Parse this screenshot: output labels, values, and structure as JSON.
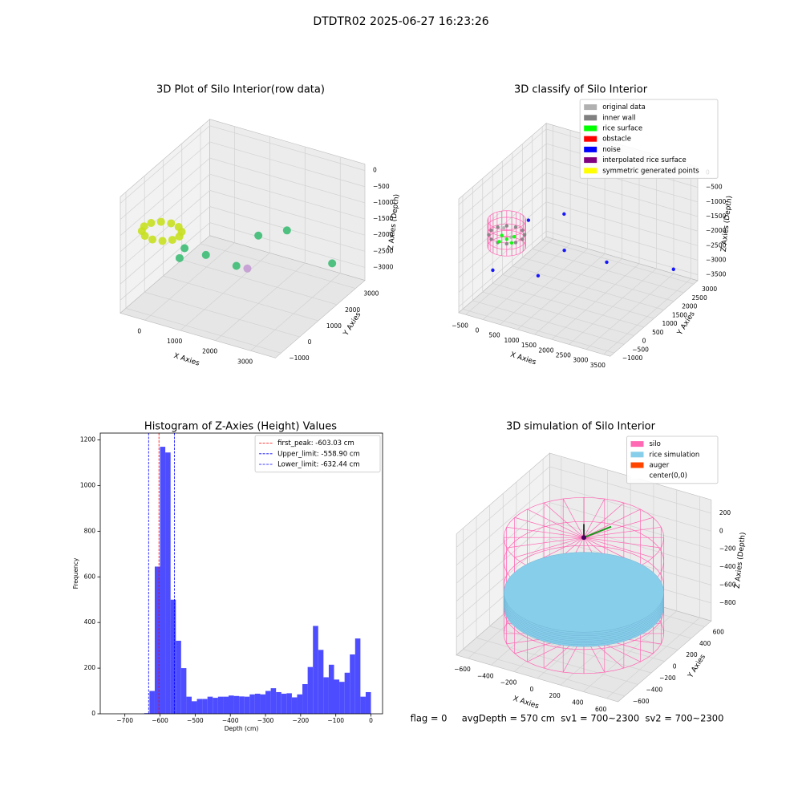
{
  "title": "DTDTR02 2025-06-27 16:23:26",
  "footer": "flag = 0     avgDepth = 570 cm  sv1 = 700~2300  sv2 = 700~2300",
  "chart_data": [
    {
      "type": "scatter3d",
      "title": "3D Plot of Silo Interior(row data)",
      "xlabel": "X Axies",
      "ylabel": "Y Axies",
      "zlabel": "Z Axies (Depth)",
      "xlim": [
        -700,
        3700
      ],
      "ylim": [
        -1300,
        3500
      ],
      "zlim": [
        -3400,
        200
      ],
      "xticks": [
        0,
        1000,
        2000,
        3000
      ],
      "yticks": [
        {
          "value": -1000,
          "label": "−1000"
        },
        0,
        1000,
        2000,
        3000
      ],
      "zticks": [
        0,
        {
          "value": -500,
          "label": "−500"
        },
        {
          "value": -1000,
          "label": "−1000"
        },
        {
          "value": -1500,
          "label": "−1500"
        },
        {
          "value": -2000,
          "label": "−2000"
        },
        {
          "value": -2500,
          "label": "−2500"
        },
        {
          "value": -3000,
          "label": "−3000"
        }
      ],
      "grid": true,
      "series": [
        {
          "color": "#c8e020",
          "points": [
            [
              500,
              -400,
              -1100
            ],
            [
              433,
              -150,
              -1100
            ],
            [
              250,
              33,
              -1100
            ],
            [
              0,
              100,
              -1100
            ],
            [
              -250,
              33,
              -1100
            ],
            [
              -433,
              -150,
              -1100
            ],
            [
              -500,
              -400,
              -1100
            ],
            [
              -433,
              -650,
              -1100
            ],
            [
              -250,
              -833,
              -1100
            ],
            [
              0,
              -900,
              -1100
            ],
            [
              250,
              -833,
              -1100
            ],
            [
              433,
              -650,
              -1100
            ]
          ]
        },
        {
          "color": "#3dbc74",
          "points": [
            [
              2000,
              1000,
              -1300
            ],
            [
              2600,
              1400,
              -1150
            ],
            [
              1200,
              -300,
              -1500
            ],
            [
              400,
              -200,
              -1900
            ],
            [
              3300,
              2500,
              -2500
            ],
            [
              1800,
              200,
              -1900
            ],
            [
              700,
              -500,
              -1350
            ]
          ]
        },
        {
          "color": "#c39bd3",
          "points": [
            [
              1900,
              600,
              -2150
            ]
          ]
        }
      ]
    },
    {
      "type": "scatter3d",
      "title": "3D classify of Silo Interior",
      "xlabel": "X Axies",
      "ylabel": "Y Axies",
      "zlabel": "Z Axies (Depth)",
      "xlim": [
        -700,
        3700
      ],
      "ylim": [
        -1200,
        3200
      ],
      "zlim": [
        -3700,
        200
      ],
      "xticks": [
        {
          "value": -500,
          "label": "−500"
        },
        0,
        500,
        1000,
        1500,
        2000,
        2500,
        3000,
        3500
      ],
      "yticks": [
        {
          "value": -1000,
          "label": "−1000"
        },
        {
          "value": -500,
          "label": "−500"
        },
        0,
        500,
        1000,
        1500,
        2000,
        2500,
        3000
      ],
      "zticks": [
        0,
        {
          "value": -500,
          "label": "−500"
        },
        {
          "value": -1000,
          "label": "−1000"
        },
        {
          "value": -1500,
          "label": "−1500"
        },
        {
          "value": -2000,
          "label": "−2000"
        },
        {
          "value": -2500,
          "label": "−2500"
        },
        {
          "value": -3000,
          "label": "−3000"
        },
        {
          "value": -3500,
          "label": "−3500"
        }
      ],
      "grid": true,
      "legend": "upper right",
      "wireframe": {
        "color": "#ff69b4",
        "radius": 480,
        "zlim": [
          -1900,
          -1000
        ]
      },
      "series": [
        {
          "name": "original data",
          "color": "#b0b0b0",
          "points": [
            [
              300,
              -300,
              -1300
            ],
            [
              -200,
              200,
              -1450
            ]
          ]
        },
        {
          "name": "inner wall",
          "color": "#808080",
          "points": [
            [
              450,
              0,
              -1500
            ],
            [
              390,
              225,
              -1500
            ],
            [
              225,
              390,
              -1500
            ],
            [
              0,
              450,
              -1500
            ],
            [
              -225,
              390,
              -1500
            ],
            [
              -390,
              225,
              -1500
            ],
            [
              -450,
              0,
              -1500
            ],
            [
              -390,
              -225,
              -1500
            ],
            [
              -225,
              -390,
              -1500
            ],
            [
              0,
              -450,
              -1500
            ],
            [
              225,
              -390,
              -1500
            ],
            [
              390,
              -225,
              -1500
            ]
          ]
        },
        {
          "name": "rice surface",
          "color": "#00ff00",
          "points": [
            [
              0,
              0,
              -1650
            ],
            [
              200,
              -100,
              -1650
            ],
            [
              -200,
              100,
              -1650
            ],
            [
              100,
              200,
              -1650
            ],
            [
              -100,
              -200,
              -1650
            ]
          ]
        },
        {
          "name": "obstacle",
          "color": "#ff0000",
          "points": []
        },
        {
          "name": "noise",
          "color": "#0000ff",
          "points": [
            [
              1500,
              300,
              -1700
            ],
            [
              2500,
              700,
              -2000
            ],
            [
              3400,
              2500,
              -3000
            ],
            [
              1200,
              -500,
              -2200
            ],
            [
              800,
              1500,
              -1400
            ],
            [
              0,
              -700,
              -2300
            ],
            [
              400,
              400,
              -1100
            ]
          ]
        },
        {
          "name": "interpolated rice surface",
          "color": "#800080",
          "points": []
        },
        {
          "name": "symmetric generated points",
          "color": "#ffff00",
          "points": []
        }
      ]
    },
    {
      "type": "histogram",
      "title": "Histogram of Z-Axies (Height) Values",
      "xlabel": "Depth (cm)",
      "ylabel": "Frequency",
      "color": "#4d4dff",
      "xlim": [
        -770,
        33
      ],
      "ylim": [
        0,
        1230
      ],
      "xticks": [
        {
          "value": -700,
          "label": "−700"
        },
        {
          "value": -600,
          "label": "−600"
        },
        {
          "value": -500,
          "label": "−500"
        },
        {
          "value": -400,
          "label": "−400"
        },
        {
          "value": -300,
          "label": "−300"
        },
        {
          "value": -200,
          "label": "−200"
        },
        {
          "value": -100,
          "label": "−100"
        },
        0
      ],
      "yticks": [
        0,
        200,
        400,
        600,
        800,
        1000,
        1200
      ],
      "bins": [
        -645,
        -630,
        -615,
        -600,
        -585,
        -570,
        -555,
        -540,
        -525,
        -510,
        -495,
        -480,
        -465,
        -450,
        -435,
        -420,
        -405,
        -390,
        -375,
        -360,
        -345,
        -330,
        -315,
        -300,
        -285,
        -270,
        -255,
        -240,
        -225,
        -210,
        -195,
        -180,
        -165,
        -150,
        -135,
        -120,
        -105,
        -90,
        -75,
        -60,
        -45,
        -30,
        -15,
        0
      ],
      "counts": [
        3,
        100,
        645,
        1170,
        1145,
        500,
        320,
        200,
        75,
        55,
        65,
        65,
        75,
        70,
        75,
        75,
        80,
        78,
        76,
        75,
        85,
        88,
        85,
        100,
        112,
        95,
        88,
        90,
        72,
        85,
        130,
        205,
        385,
        280,
        160,
        215,
        150,
        140,
        180,
        260,
        330,
        75,
        95
      ],
      "legend": "upper right",
      "vlines": [
        {
          "value": -603.03,
          "label": "first_peak: -603.03 cm",
          "color": "#ff0000"
        },
        {
          "value": -558.9,
          "label": "Upper_limit: -558.90 cm",
          "color": "#0000ff"
        },
        {
          "value": -632.44,
          "label": "Lower_limit: -632.44 cm",
          "color": "#0000ff"
        }
      ]
    },
    {
      "type": "silo3d",
      "title": "3D simulation of Silo Interior",
      "xlabel": "X Axies",
      "ylabel": "Y Axies",
      "zlabel": "Z Axies (Depth)",
      "xlim": [
        -700,
        700
      ],
      "ylim": [
        -700,
        700
      ],
      "zlim": [
        -1000,
        350
      ],
      "xticks": [
        {
          "value": -600,
          "label": "−600"
        },
        {
          "value": -400,
          "label": "−400"
        },
        {
          "value": -200,
          "label": "−200"
        },
        0,
        200,
        400,
        600
      ],
      "yticks": [
        {
          "value": -600,
          "label": "−600"
        },
        {
          "value": -400,
          "label": "−400"
        },
        {
          "value": -200,
          "label": "−200"
        },
        0,
        200,
        400,
        600
      ],
      "zticks": [
        {
          "value": -800,
          "label": "−800"
        },
        {
          "value": -600,
          "label": "−600"
        },
        {
          "value": -400,
          "label": "−400"
        },
        {
          "value": -200,
          "label": "−200"
        },
        0,
        200
      ],
      "grid": true,
      "legend": "upper right",
      "silo": {
        "name": "silo",
        "color": "#ff69b4",
        "radius": 600,
        "zlim": [
          -950,
          120
        ]
      },
      "rice": {
        "name": "rice simulation",
        "color": "#87ceeb",
        "radius": 600,
        "z": -570
      },
      "auger": {
        "name": "auger",
        "color": "#ff4500"
      },
      "center": {
        "name": "center(0,0)",
        "color": "#ffffff"
      }
    }
  ]
}
